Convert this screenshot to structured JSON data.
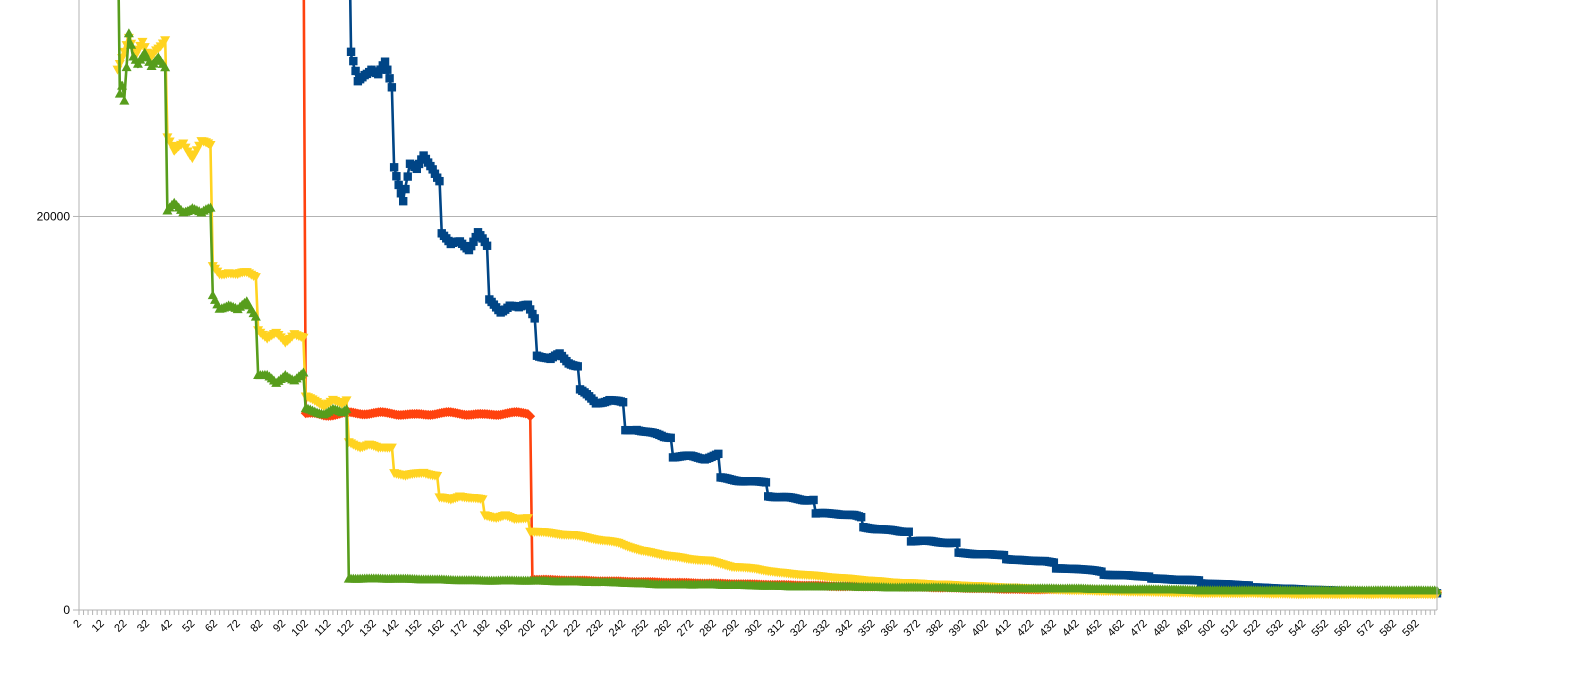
{
  "chart_data": {
    "type": "line",
    "title": "",
    "xlabel": "",
    "ylabel": "",
    "ylim": [
      0,
      31000
    ],
    "y_ticks": [
      0,
      20000
    ],
    "x_range": [
      2,
      601
    ],
    "x_tick_labels": [
      "2",
      "12",
      "22",
      "32",
      "42",
      "52",
      "62",
      "72",
      "82",
      "92",
      "102",
      "112",
      "122",
      "132",
      "142",
      "152",
      "162",
      "172",
      "182",
      "192",
      "202",
      "212",
      "222",
      "232",
      "242",
      "252",
      "262",
      "272",
      "282",
      "292",
      "302",
      "312",
      "322",
      "332",
      "342",
      "352",
      "362",
      "372",
      "382",
      "392",
      "402",
      "412",
      "422",
      "432",
      "442",
      "452",
      "462",
      "472",
      "482",
      "492",
      "502",
      "512",
      "522",
      "532",
      "542",
      "552",
      "562",
      "572",
      "582",
      "592"
    ],
    "grid": "horizontal",
    "legend": "none",
    "series": [
      {
        "color": "#004586",
        "marker": "square",
        "points": [
          [
            121,
            36000
          ],
          [
            122,
            28200
          ],
          [
            125,
            26800
          ],
          [
            128,
            27300
          ],
          [
            131,
            27600
          ],
          [
            134,
            27200
          ],
          [
            137,
            27700
          ],
          [
            140,
            26500
          ],
          [
            141,
            22500
          ],
          [
            145,
            20900
          ],
          [
            148,
            22700
          ],
          [
            151,
            22300
          ],
          [
            154,
            23000
          ],
          [
            158,
            22500
          ],
          [
            161,
            21900
          ],
          [
            162,
            19200
          ],
          [
            166,
            18500
          ],
          [
            170,
            18700
          ],
          [
            174,
            18400
          ],
          [
            178,
            19200
          ],
          [
            182,
            18400
          ],
          [
            183,
            15700
          ],
          [
            188,
            15200
          ],
          [
            192,
            15500
          ],
          [
            196,
            15300
          ],
          [
            200,
            15500
          ],
          [
            203,
            14900
          ],
          [
            204,
            13000
          ],
          [
            210,
            12700
          ],
          [
            214,
            13000
          ],
          [
            218,
            12600
          ],
          [
            222,
            12400
          ],
          [
            223,
            11200
          ],
          [
            230,
            10500
          ],
          [
            236,
            10700
          ],
          [
            242,
            10500
          ],
          [
            243,
            9100
          ],
          [
            248,
            9200
          ],
          [
            254,
            9000
          ],
          [
            260,
            8800
          ],
          [
            263,
            8800
          ],
          [
            264,
            7800
          ],
          [
            272,
            7800
          ],
          [
            278,
            7700
          ],
          [
            284,
            7900
          ],
          [
            285,
            6700
          ],
          [
            292,
            6600
          ],
          [
            300,
            6500
          ],
          [
            305,
            6500
          ],
          [
            306,
            5800
          ],
          [
            315,
            5700
          ],
          [
            322,
            5600
          ],
          [
            326,
            5600
          ],
          [
            327,
            4900
          ],
          [
            336,
            4900
          ],
          [
            344,
            4800
          ],
          [
            347,
            4700
          ],
          [
            348,
            4200
          ],
          [
            356,
            4100
          ],
          [
            364,
            4000
          ],
          [
            368,
            4000
          ],
          [
            369,
            3500
          ],
          [
            378,
            3500
          ],
          [
            386,
            3400
          ],
          [
            389,
            3400
          ],
          [
            390,
            2900
          ],
          [
            398,
            2850
          ],
          [
            406,
            2800
          ],
          [
            410,
            2800
          ],
          [
            411,
            2600
          ],
          [
            420,
            2500
          ],
          [
            428,
            2500
          ],
          [
            432,
            2400
          ],
          [
            433,
            2100
          ],
          [
            442,
            2100
          ],
          [
            450,
            2000
          ],
          [
            453,
            1950
          ],
          [
            454,
            1800
          ],
          [
            465,
            1750
          ],
          [
            474,
            1700
          ],
          [
            475,
            1600
          ],
          [
            485,
            1550
          ],
          [
            496,
            1500
          ],
          [
            497,
            1350
          ],
          [
            508,
            1300
          ],
          [
            518,
            1250
          ],
          [
            519,
            1150
          ],
          [
            530,
            1100
          ],
          [
            540,
            1050
          ],
          [
            552,
            1000
          ],
          [
            563,
            950
          ],
          [
            575,
            900
          ],
          [
            590,
            850
          ],
          [
            601,
            850
          ]
        ]
      },
      {
        "color": "#ff420e",
        "marker": "diamond",
        "points": [
          [
            101,
            36000
          ],
          [
            102,
            10000
          ],
          [
            110,
            9900
          ],
          [
            120,
            10000
          ],
          [
            130,
            10000
          ],
          [
            140,
            10000
          ],
          [
            150,
            9900
          ],
          [
            160,
            10000
          ],
          [
            170,
            10000
          ],
          [
            180,
            9900
          ],
          [
            190,
            10000
          ],
          [
            200,
            10000
          ],
          [
            201,
            9900
          ],
          [
            202,
            1550
          ],
          [
            220,
            1500
          ],
          [
            240,
            1450
          ],
          [
            260,
            1400
          ],
          [
            280,
            1350
          ],
          [
            300,
            1300
          ],
          [
            320,
            1250
          ],
          [
            340,
            1200
          ],
          [
            360,
            1200
          ],
          [
            380,
            1150
          ],
          [
            400,
            1100
          ],
          [
            420,
            1050
          ],
          [
            440,
            1050
          ],
          [
            460,
            1000
          ],
          [
            480,
            1000
          ],
          [
            500,
            950
          ],
          [
            520,
            950
          ],
          [
            540,
            900
          ],
          [
            560,
            900
          ],
          [
            580,
            900
          ],
          [
            601,
            900
          ]
        ]
      },
      {
        "color": "#ffd320",
        "marker": "triangle-down",
        "points": [
          [
            19,
            27500
          ],
          [
            21,
            28200
          ],
          [
            24,
            29200
          ],
          [
            27,
            28100
          ],
          [
            30,
            28700
          ],
          [
            33,
            28000
          ],
          [
            36,
            28600
          ],
          [
            40,
            29000
          ],
          [
            41,
            24000
          ],
          [
            44,
            23200
          ],
          [
            48,
            23700
          ],
          [
            52,
            23100
          ],
          [
            56,
            23800
          ],
          [
            60,
            23500
          ],
          [
            61,
            17400
          ],
          [
            64,
            17100
          ],
          [
            68,
            17200
          ],
          [
            72,
            17000
          ],
          [
            76,
            17100
          ],
          [
            80,
            17000
          ],
          [
            81,
            14300
          ],
          [
            85,
            13800
          ],
          [
            89,
            14000
          ],
          [
            93,
            13600
          ],
          [
            97,
            14100
          ],
          [
            101,
            13800
          ],
          [
            102,
            10800
          ],
          [
            106,
            10600
          ],
          [
            110,
            10400
          ],
          [
            114,
            10700
          ],
          [
            118,
            10400
          ],
          [
            120,
            10600
          ],
          [
            121,
            8500
          ],
          [
            126,
            8300
          ],
          [
            130,
            8400
          ],
          [
            134,
            8200
          ],
          [
            140,
            8300
          ],
          [
            141,
            7000
          ],
          [
            146,
            6800
          ],
          [
            150,
            6900
          ],
          [
            154,
            7000
          ],
          [
            160,
            6800
          ],
          [
            161,
            5700
          ],
          [
            166,
            5600
          ],
          [
            170,
            5800
          ],
          [
            174,
            5700
          ],
          [
            180,
            5600
          ],
          [
            181,
            4800
          ],
          [
            186,
            4700
          ],
          [
            190,
            4800
          ],
          [
            194,
            4600
          ],
          [
            200,
            4700
          ],
          [
            201,
            4000
          ],
          [
            210,
            3900
          ],
          [
            220,
            3800
          ],
          [
            230,
            3600
          ],
          [
            240,
            3400
          ],
          [
            250,
            3000
          ],
          [
            260,
            2800
          ],
          [
            270,
            2600
          ],
          [
            280,
            2500
          ],
          [
            290,
            2200
          ],
          [
            300,
            2100
          ],
          [
            310,
            1900
          ],
          [
            320,
            1800
          ],
          [
            330,
            1700
          ],
          [
            340,
            1600
          ],
          [
            350,
            1500
          ],
          [
            360,
            1400
          ],
          [
            380,
            1300
          ],
          [
            400,
            1200
          ],
          [
            420,
            1100
          ],
          [
            440,
            1000
          ],
          [
            460,
            950
          ],
          [
            480,
            900
          ],
          [
            500,
            850
          ],
          [
            520,
            850
          ],
          [
            540,
            800
          ],
          [
            560,
            800
          ],
          [
            580,
            800
          ],
          [
            601,
            800
          ]
        ]
      },
      {
        "color": "#579d1c",
        "marker": "triangle-up",
        "points": [
          [
            19,
            36000
          ],
          [
            20,
            26400
          ],
          [
            21,
            26800
          ],
          [
            22,
            26000
          ],
          [
            24,
            29300
          ],
          [
            26,
            28000
          ],
          [
            28,
            27600
          ],
          [
            31,
            28300
          ],
          [
            34,
            27800
          ],
          [
            37,
            28200
          ],
          [
            40,
            27500
          ],
          [
            41,
            20200
          ],
          [
            44,
            20600
          ],
          [
            48,
            20300
          ],
          [
            52,
            20500
          ],
          [
            56,
            20100
          ],
          [
            60,
            20400
          ],
          [
            61,
            16000
          ],
          [
            64,
            15400
          ],
          [
            68,
            15500
          ],
          [
            72,
            15200
          ],
          [
            76,
            15700
          ],
          [
            80,
            15000
          ],
          [
            81,
            12000
          ],
          [
            85,
            11900
          ],
          [
            89,
            11500
          ],
          [
            93,
            12000
          ],
          [
            97,
            11700
          ],
          [
            101,
            12000
          ],
          [
            102,
            10200
          ],
          [
            106,
            10100
          ],
          [
            110,
            10000
          ],
          [
            114,
            10200
          ],
          [
            118,
            10000
          ],
          [
            120,
            10200
          ],
          [
            121,
            1600
          ],
          [
            140,
            1600
          ],
          [
            160,
            1550
          ],
          [
            180,
            1500
          ],
          [
            200,
            1500
          ],
          [
            220,
            1450
          ],
          [
            240,
            1400
          ],
          [
            260,
            1300
          ],
          [
            280,
            1300
          ],
          [
            300,
            1250
          ],
          [
            320,
            1200
          ],
          [
            340,
            1200
          ],
          [
            360,
            1150
          ],
          [
            380,
            1150
          ],
          [
            400,
            1100
          ],
          [
            420,
            1100
          ],
          [
            440,
            1100
          ],
          [
            460,
            1050
          ],
          [
            480,
            1050
          ],
          [
            500,
            1000
          ],
          [
            520,
            1000
          ],
          [
            540,
            1000
          ],
          [
            560,
            1000
          ],
          [
            580,
            1000
          ],
          [
            601,
            1000
          ]
        ]
      }
    ]
  }
}
